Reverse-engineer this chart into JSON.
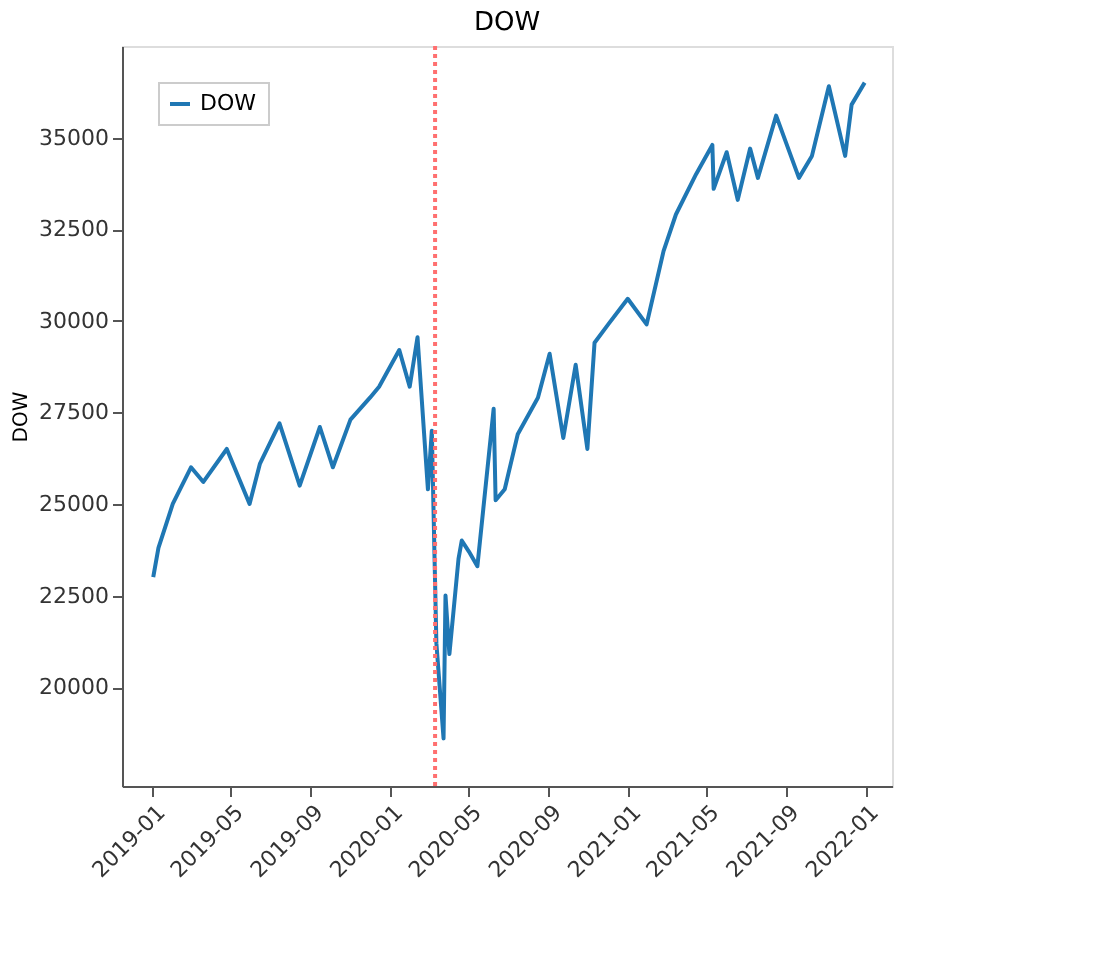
{
  "chart_data": {
    "type": "line",
    "title": "DOW",
    "ylabel": "DOW",
    "xlim": [
      "2018-11-15",
      "2022-02-10"
    ],
    "ylim": [
      17300,
      37500
    ],
    "xticks": [
      {
        "value": "2019-01",
        "label": "2019-01"
      },
      {
        "value": "2019-05",
        "label": "2019-05"
      },
      {
        "value": "2019-09",
        "label": "2019-09"
      },
      {
        "value": "2020-01",
        "label": "2020-01"
      },
      {
        "value": "2020-05",
        "label": "2020-05"
      },
      {
        "value": "2020-09",
        "label": "2020-09"
      },
      {
        "value": "2021-01",
        "label": "2021-01"
      },
      {
        "value": "2021-05",
        "label": "2021-05"
      },
      {
        "value": "2021-09",
        "label": "2021-09"
      },
      {
        "value": "2022-01",
        "label": "2022-01"
      }
    ],
    "yticks": [
      20000,
      22500,
      25000,
      27500,
      30000,
      32500,
      35000
    ],
    "grid": false,
    "legend": "top left",
    "line_style": "solid",
    "marker": "none",
    "ref_lines": [
      {
        "axis": "x",
        "value": "2020-03-10",
        "color": "#ff7070",
        "line_style": "dotted"
      }
    ],
    "x": [
      "2019-01-02",
      "2019-01-10",
      "2019-02-01",
      "2019-03-01",
      "2019-03-20",
      "2019-04-25",
      "2019-05-30",
      "2019-06-15",
      "2019-07-15",
      "2019-08-15",
      "2019-09-15",
      "2019-10-05",
      "2019-11-01",
      "2019-12-01",
      "2019-12-15",
      "2020-01-15",
      "2020-01-31",
      "2020-02-12",
      "2020-02-28",
      "2020-03-05",
      "2020-03-12",
      "2020-03-23",
      "2020-03-26",
      "2020-04-01",
      "2020-04-15",
      "2020-04-20",
      "2020-05-01",
      "2020-05-14",
      "2020-06-08",
      "2020-06-11",
      "2020-06-25",
      "2020-07-15",
      "2020-08-15",
      "2020-09-02",
      "2020-09-23",
      "2020-10-12",
      "2020-10-30",
      "2020-11-10",
      "2020-12-01",
      "2020-12-31",
      "2021-01-29",
      "2021-02-24",
      "2021-03-15",
      "2021-04-15",
      "2021-05-10",
      "2021-05-12",
      "2021-06-01",
      "2021-06-18",
      "2021-07-07",
      "2021-07-19",
      "2021-08-16",
      "2021-09-20",
      "2021-10-10",
      "2021-11-05",
      "2021-11-30",
      "2021-12-10",
      "2021-12-30"
    ],
    "series": [
      {
        "name": "DOW",
        "color": "#1f77b4",
        "values": [
          23000,
          23800,
          25000,
          26000,
          25600,
          26500,
          25000,
          26100,
          27200,
          25500,
          27100,
          26000,
          27300,
          27900,
          28200,
          29200,
          28200,
          29550,
          25400,
          27000,
          21200,
          18600,
          22500,
          20900,
          23500,
          24000,
          23700,
          23300,
          27600,
          25100,
          25400,
          26900,
          27900,
          29100,
          26800,
          28800,
          26500,
          29400,
          29900,
          30600,
          29900,
          31900,
          32900,
          34000,
          34800,
          33600,
          34600,
          33300,
          34700,
          33900,
          35600,
          33900,
          34500,
          36400,
          34500,
          35900,
          36500
        ]
      }
    ]
  }
}
